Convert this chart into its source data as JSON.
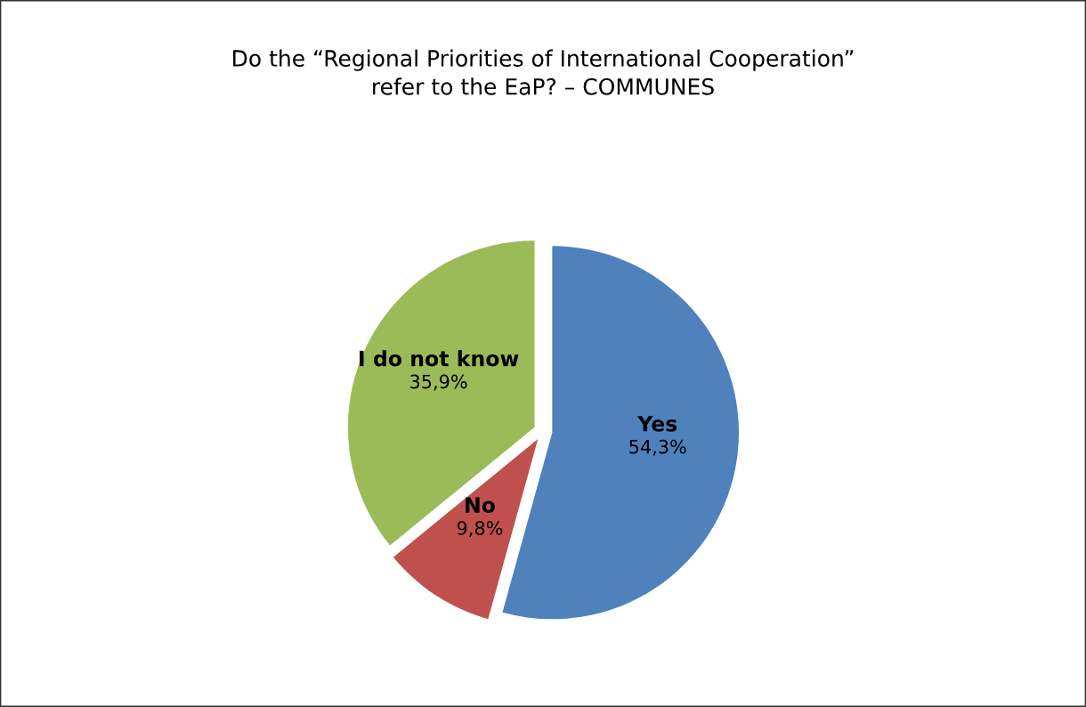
{
  "chart_data": {
    "type": "pie",
    "title": "Do the “Regional Priorities of International Cooperation”\nrefer to the EaP? – COMMUNES",
    "categories": [
      "Yes",
      "No",
      "I do not know"
    ],
    "values": [
      54.3,
      9.8,
      35.9
    ],
    "value_labels": [
      "54,3%",
      "9,8%",
      "35,9%"
    ],
    "colors": [
      "#4f81bd",
      "#c0504d",
      "#9bbb59"
    ],
    "legend": false
  }
}
